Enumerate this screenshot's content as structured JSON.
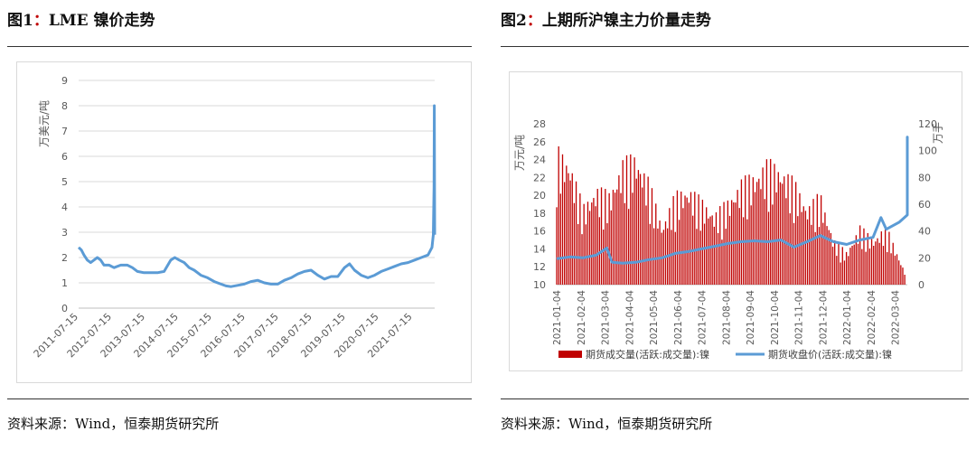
{
  "left": {
    "title_prefix": "图1",
    "title_colon": "：",
    "title_text": "LME 镍价走势",
    "source": "资料来源：Wind，恒泰期货研究所"
  },
  "right": {
    "title_prefix": "图2",
    "title_colon": "：",
    "title_text": "上期所沪镍主力价量走势",
    "source": "资料来源：Wind，恒泰期货研究所"
  },
  "colors": {
    "line": "#5b9bd5",
    "bar": "#c00000",
    "title_colon": "#c00000",
    "grid": "#d9d9d9"
  },
  "chart_data": [
    {
      "type": "line",
      "ylabel": "万美元/吨",
      "ylim": [
        0,
        9
      ],
      "yticks": [
        "0",
        "1",
        "2",
        "3",
        "4",
        "5",
        "6",
        "7",
        "8",
        "9"
      ],
      "xticks": [
        "2011-07-15",
        "2012-07-15",
        "2013-07-15",
        "2014-07-15",
        "2015-07-15",
        "2016-07-15",
        "2017-07-15",
        "2018-07-15",
        "2019-07-15",
        "2020-07-15",
        "2021-07-15"
      ],
      "x_range": [
        2011.54,
        2022.2
      ],
      "grid": "horizontal",
      "series": [
        {
          "x": [
            2011.54,
            2011.62,
            2011.7,
            2011.8,
            2011.9,
            2012.0,
            2012.1,
            2012.2,
            2012.3,
            2012.45,
            2012.6,
            2012.8,
            2013.0,
            2013.15,
            2013.3,
            2013.5,
            2013.7,
            2013.9,
            2014.1,
            2014.3,
            2014.42,
            2014.55,
            2014.7,
            2014.85,
            2015.0,
            2015.2,
            2015.4,
            2015.6,
            2015.8,
            2015.95,
            2016.1,
            2016.3,
            2016.5,
            2016.7,
            2016.9,
            2017.1,
            2017.3,
            2017.5,
            2017.7,
            2017.9,
            2018.1,
            2018.3,
            2018.5,
            2018.7,
            2018.9,
            2019.1,
            2019.3,
            2019.5,
            2019.65,
            2019.8,
            2020.0,
            2020.2,
            2020.4,
            2020.6,
            2020.8,
            2021.0,
            2021.2,
            2021.4,
            2021.6,
            2021.8,
            2022.0,
            2022.12,
            2022.16,
            2022.18,
            2022.19,
            2022.2
          ],
          "y": [
            2.4,
            2.3,
            2.1,
            1.9,
            1.8,
            1.9,
            2.0,
            1.9,
            1.7,
            1.7,
            1.6,
            1.7,
            1.7,
            1.6,
            1.45,
            1.4,
            1.4,
            1.4,
            1.45,
            1.9,
            2.0,
            1.9,
            1.8,
            1.6,
            1.5,
            1.3,
            1.2,
            1.05,
            0.95,
            0.88,
            0.85,
            0.9,
            0.95,
            1.05,
            1.1,
            1.0,
            0.95,
            0.95,
            1.1,
            1.2,
            1.35,
            1.45,
            1.5,
            1.3,
            1.15,
            1.25,
            1.25,
            1.6,
            1.75,
            1.5,
            1.3,
            1.2,
            1.3,
            1.45,
            1.55,
            1.65,
            1.75,
            1.8,
            1.9,
            2.0,
            2.1,
            2.4,
            2.9,
            4.8,
            8.0,
            2.9
          ]
        }
      ]
    },
    {
      "type": "bar+line",
      "ylabel_left": "万元/吨",
      "ylabel_right": "万手",
      "ylim_left": [
        10,
        28
      ],
      "ylim_right": [
        0,
        120
      ],
      "yticks_left": [
        "10",
        "12",
        "14",
        "16",
        "18",
        "20",
        "22",
        "24",
        "26",
        "28"
      ],
      "yticks_right": [
        "0",
        "20",
        "40",
        "60",
        "80",
        "100",
        "120"
      ],
      "xticks": [
        "2021-01-04",
        "2021-02-04",
        "2021-03-04",
        "2021-04-04",
        "2021-05-04",
        "2021-06-04",
        "2021-07-04",
        "2021-08-04",
        "2021-09-04",
        "2021-10-04",
        "2021-11-04",
        "2021-12-04",
        "2022-01-04",
        "2022-02-04",
        "2022-03-04"
      ],
      "x_range_months": [
        0,
        13.3
      ],
      "legend": [
        "期货成交量(活跃:成交量):镍",
        "期货收盘价(活跃:成交量):镍"
      ],
      "legend_position": "bottom",
      "bar_series": {
        "name": "期货成交量(活跃:成交量):镍",
        "axis": "right",
        "months": [
          0,
          0.5,
          1,
          1.5,
          2,
          2.5,
          3,
          3.5,
          4,
          4.5,
          5,
          5.5,
          6,
          6.5,
          7,
          7.5,
          8,
          8.5,
          9,
          9.5,
          10,
          10.5,
          11,
          11.5,
          12,
          12.5,
          13,
          13.2
        ],
        "values": [
          105,
          95,
          60,
          75,
          70,
          95,
          100,
          80,
          45,
          70,
          75,
          65,
          55,
          65,
          80,
          85,
          95,
          90,
          80,
          60,
          70,
          35,
          25,
          45,
          35,
          45,
          20,
          10
        ]
      },
      "line_series": {
        "name": "期货收盘价(活跃:成交量):镍",
        "axis": "left",
        "months": [
          0,
          0.5,
          1,
          1.5,
          1.9,
          2.1,
          2.5,
          3,
          3.5,
          4,
          4.5,
          5,
          5.5,
          6,
          6.5,
          7,
          7.5,
          8,
          8.5,
          9,
          9.5,
          10,
          10.5,
          11,
          11.5,
          12,
          12.3,
          12.5,
          13,
          13.3,
          13.4,
          13.5,
          13.6,
          13.7,
          13.8,
          13.9,
          14.0,
          14.1
        ],
        "values": [
          12.9,
          13.1,
          13.0,
          13.3,
          14.1,
          12.5,
          12.4,
          12.5,
          12.8,
          13.0,
          13.5,
          13.7,
          14.0,
          14.3,
          14.6,
          14.8,
          14.9,
          14.8,
          15.0,
          14.2,
          14.8,
          15.5,
          14.8,
          14.5,
          15.0,
          15.3,
          17.5,
          16.2,
          17.0,
          17.8,
          18.0,
          18.0,
          26.5,
          19.0,
          19.5,
          22.0,
          20.0,
          21.0
        ]
      }
    }
  ]
}
